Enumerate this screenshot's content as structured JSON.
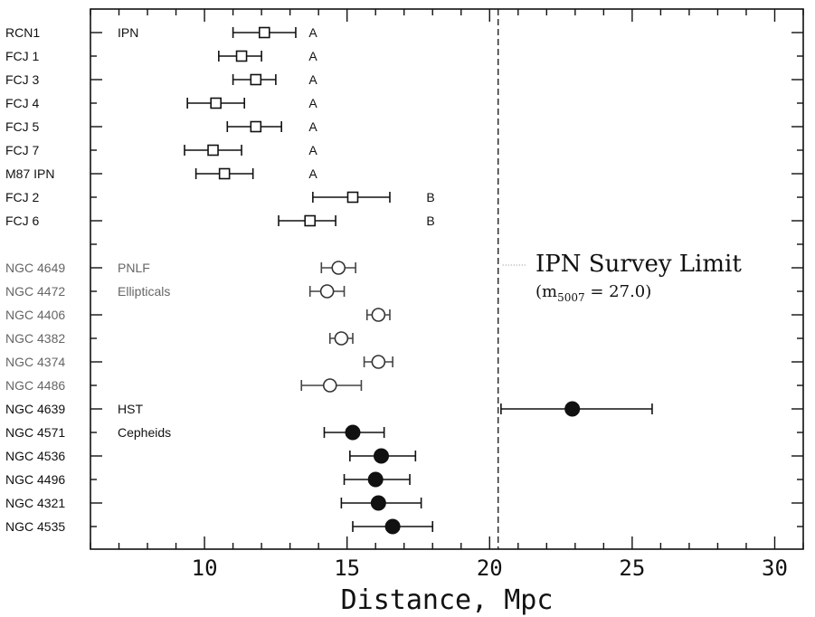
{
  "chart_data": {
    "type": "scatter",
    "xlabel": "Distance, Mpc",
    "xlim": [
      6,
      31
    ],
    "xticks": [
      "10",
      "15",
      "20",
      "25",
      "30"
    ],
    "rows": [
      {
        "label": "RCN1",
        "x": 12.1,
        "xmin": 11.0,
        "xmax": 13.2,
        "marker": "square",
        "class": "A",
        "group": "IPN"
      },
      {
        "label": "FCJ 1",
        "x": 11.3,
        "xmin": 10.5,
        "xmax": 12.0,
        "marker": "square",
        "class": "A",
        "group": "IPN"
      },
      {
        "label": "FCJ 3",
        "x": 11.8,
        "xmin": 11.0,
        "xmax": 12.5,
        "marker": "square",
        "class": "A",
        "group": "IPN"
      },
      {
        "label": "FCJ 4",
        "x": 10.4,
        "xmin": 9.4,
        "xmax": 11.4,
        "marker": "square",
        "class": "A",
        "group": "IPN"
      },
      {
        "label": "FCJ 5",
        "x": 11.8,
        "xmin": 10.8,
        "xmax": 12.7,
        "marker": "square",
        "class": "A",
        "group": "IPN"
      },
      {
        "label": "FCJ 7",
        "x": 10.3,
        "xmin": 9.3,
        "xmax": 11.3,
        "marker": "square",
        "class": "A",
        "group": "IPN"
      },
      {
        "label": "M87 IPN",
        "x": 10.7,
        "xmin": 9.7,
        "xmax": 11.7,
        "marker": "square",
        "class": "A",
        "group": "IPN"
      },
      {
        "label": "FCJ 2",
        "x": 15.2,
        "xmin": 13.8,
        "xmax": 16.5,
        "marker": "square",
        "class": "B",
        "group": "IPN"
      },
      {
        "label": "FCJ 6",
        "x": 13.7,
        "xmin": 12.6,
        "xmax": 14.6,
        "marker": "square",
        "class": "B",
        "group": "IPN"
      },
      {
        "label": "NGC 4649",
        "x": 14.7,
        "xmin": 14.1,
        "xmax": 15.3,
        "marker": "open-circle",
        "class": "",
        "group": "PNLF"
      },
      {
        "label": "NGC 4472",
        "x": 14.3,
        "xmin": 13.7,
        "xmax": 14.9,
        "marker": "open-circle",
        "class": "",
        "group": "PNLF"
      },
      {
        "label": "NGC 4406",
        "x": 16.1,
        "xmin": 15.7,
        "xmax": 16.5,
        "marker": "open-circle",
        "class": "",
        "group": "PNLF"
      },
      {
        "label": "NGC 4382",
        "x": 14.8,
        "xmin": 14.4,
        "xmax": 15.2,
        "marker": "open-circle",
        "class": "",
        "group": "PNLF"
      },
      {
        "label": "NGC 4374",
        "x": 16.1,
        "xmin": 15.6,
        "xmax": 16.6,
        "marker": "open-circle",
        "class": "",
        "group": "PNLF"
      },
      {
        "label": "NGC 4486",
        "x": 14.4,
        "xmin": 13.4,
        "xmax": 15.5,
        "marker": "open-circle",
        "class": "",
        "group": "PNLF"
      },
      {
        "label": "NGC 4639",
        "x": 22.9,
        "xmin": 20.4,
        "xmax": 25.7,
        "marker": "filled-circle",
        "class": "",
        "group": "HST"
      },
      {
        "label": "NGC 4571",
        "x": 15.2,
        "xmin": 14.2,
        "xmax": 16.3,
        "marker": "filled-circle",
        "class": "",
        "group": "HST"
      },
      {
        "label": "NGC 4536",
        "x": 16.2,
        "xmin": 15.1,
        "xmax": 17.4,
        "marker": "filled-circle",
        "class": "",
        "group": "HST"
      },
      {
        "label": "NGC 4496",
        "x": 16.0,
        "xmin": 14.9,
        "xmax": 17.2,
        "marker": "filled-circle",
        "class": "",
        "group": "HST"
      },
      {
        "label": "NGC 4321",
        "x": 16.1,
        "xmin": 14.8,
        "xmax": 17.6,
        "marker": "filled-circle",
        "class": "",
        "group": "HST"
      },
      {
        "label": "NGC 4535",
        "x": 16.6,
        "xmin": 15.2,
        "xmax": 18.0,
        "marker": "filled-circle",
        "class": "",
        "group": "HST"
      }
    ],
    "group_labels": [
      {
        "text": "IPN",
        "row": 0
      },
      {
        "text": "PNLF",
        "row": 9
      },
      {
        "text": "Ellipticals",
        "row": 10
      },
      {
        "text": "HST",
        "row": 15
      },
      {
        "text": "Cepheids",
        "row": 16
      }
    ],
    "survey_limit": {
      "x": 20.3,
      "label": "IPN Survey Limit",
      "sublabel_pre": "(m",
      "sublabel_sub": "5007",
      "sublabel_post": " = 27.0)"
    }
  }
}
